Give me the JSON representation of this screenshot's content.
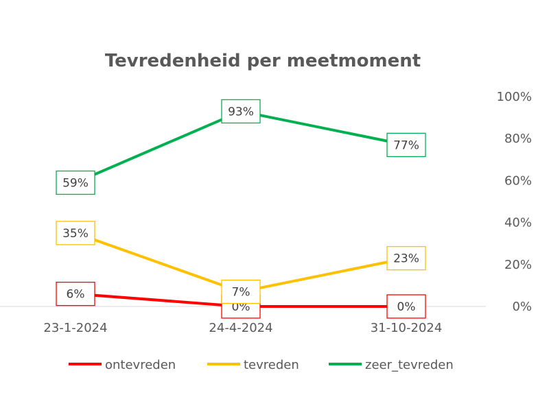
{
  "chart_data": {
    "type": "line",
    "title": "Tevredenheid per meetmoment",
    "categories": [
      "23-1-2024",
      "24-4-2024",
      "31-10-2024"
    ],
    "y_ticks": [
      "0%",
      "20%",
      "40%",
      "60%",
      "80%",
      "100%"
    ],
    "ylim": [
      0,
      100
    ],
    "y_axis_side": "right",
    "grid": false,
    "legend_position": "bottom",
    "series": [
      {
        "name": "ontevreden",
        "color": "#ff0000",
        "values": [
          6,
          0,
          0
        ],
        "labels": [
          "6%",
          "0%",
          "0%"
        ]
      },
      {
        "name": "tevreden",
        "color": "#ffc000",
        "values": [
          35,
          7,
          23
        ],
        "labels": [
          "35%",
          "7%",
          "23%"
        ]
      },
      {
        "name": "zeer_tevreden",
        "color": "#00b050",
        "values": [
          59,
          93,
          77
        ],
        "labels": [
          "59%",
          "93%",
          "77%"
        ]
      }
    ]
  }
}
